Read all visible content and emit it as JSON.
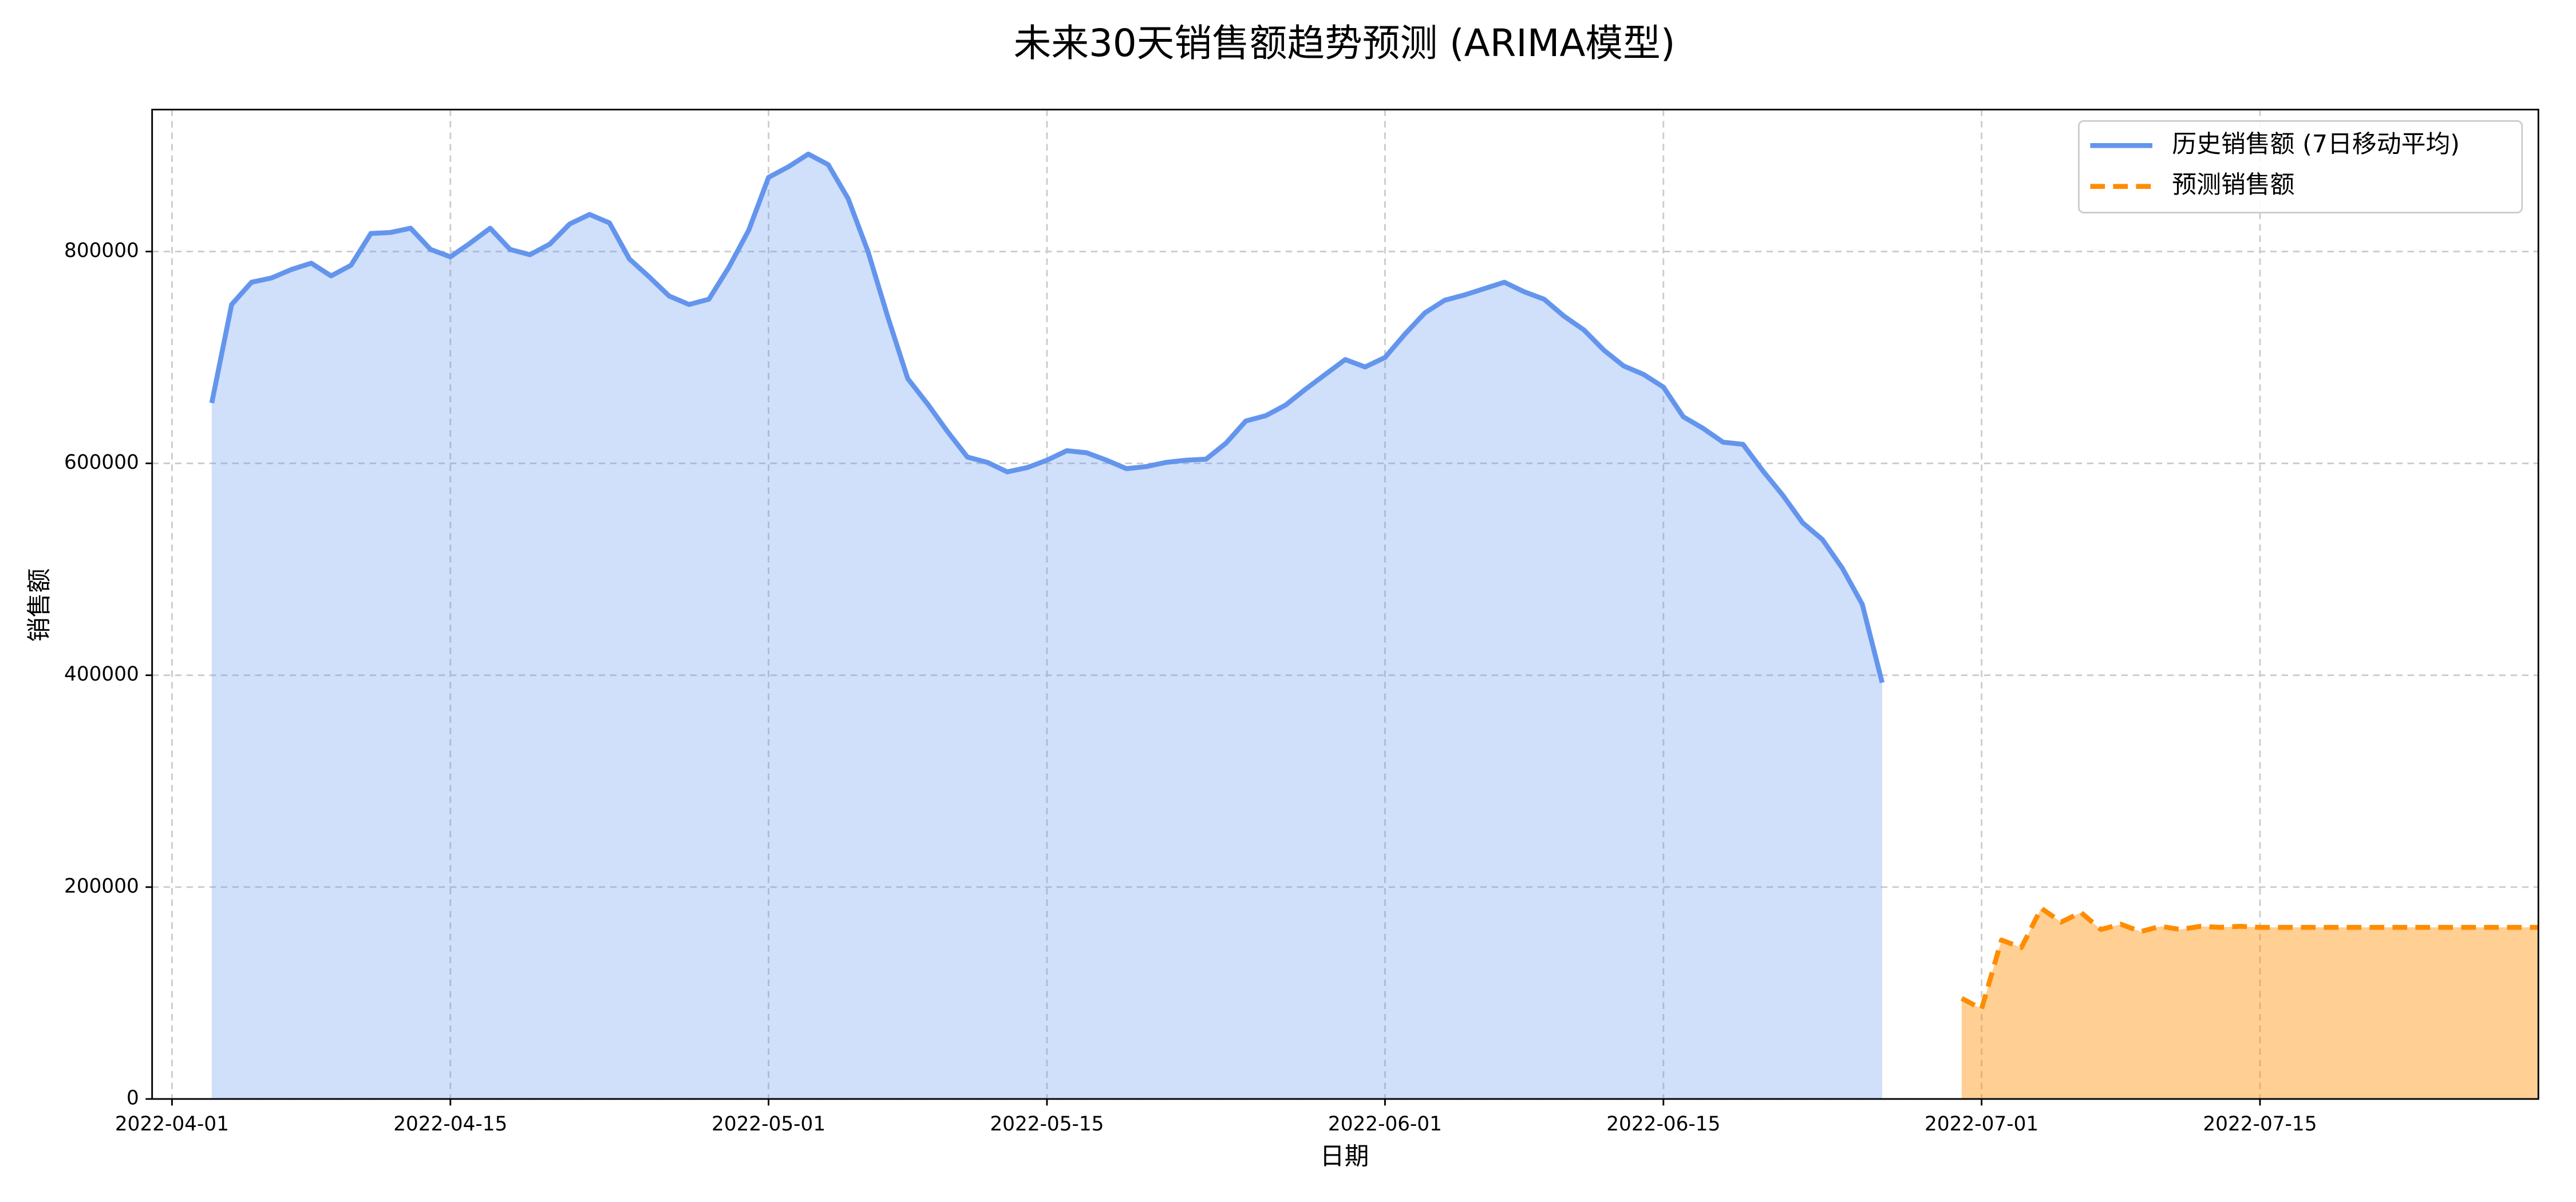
{
  "chart_data": {
    "type": "line",
    "title": "未来30天销售额趋势预测 (ARIMA模型)",
    "x_label": "日期",
    "y_label": "销售额",
    "xlim": [
      "2022-03-31",
      "2022-07-29"
    ],
    "xticks": [
      "2022-04-01",
      "2022-04-15",
      "2022-05-01",
      "2022-05-15",
      "2022-06-01",
      "2022-06-15",
      "2022-07-01",
      "2022-07-15"
    ],
    "ylim": [
      0,
      934000
    ],
    "yticks": [
      0,
      200000,
      400000,
      600000,
      800000
    ],
    "grid": true,
    "legend": "upper right",
    "fill": true,
    "series": [
      {
        "name": "历史销售额 (7日移动平均)",
        "color": "#6495ED",
        "linestyle": "solid",
        "x": [
          "2022-04-03",
          "2022-04-04",
          "2022-04-05",
          "2022-04-06",
          "2022-04-07",
          "2022-04-08",
          "2022-04-09",
          "2022-04-10",
          "2022-04-11",
          "2022-04-12",
          "2022-04-13",
          "2022-04-14",
          "2022-04-15",
          "2022-04-16",
          "2022-04-17",
          "2022-04-18",
          "2022-04-19",
          "2022-04-20",
          "2022-04-21",
          "2022-04-22",
          "2022-04-23",
          "2022-04-24",
          "2022-04-25",
          "2022-04-26",
          "2022-04-27",
          "2022-04-28",
          "2022-04-29",
          "2022-04-30",
          "2022-05-01",
          "2022-05-02",
          "2022-05-03",
          "2022-05-04",
          "2022-05-05",
          "2022-05-06",
          "2022-05-07",
          "2022-05-08",
          "2022-05-09",
          "2022-05-10",
          "2022-05-11",
          "2022-05-12",
          "2022-05-13",
          "2022-05-14",
          "2022-05-15",
          "2022-05-16",
          "2022-05-17",
          "2022-05-18",
          "2022-05-19",
          "2022-05-20",
          "2022-05-21",
          "2022-05-22",
          "2022-05-23",
          "2022-05-24",
          "2022-05-25",
          "2022-05-26",
          "2022-05-27",
          "2022-05-28",
          "2022-05-29",
          "2022-05-30",
          "2022-05-31",
          "2022-06-01",
          "2022-06-02",
          "2022-06-03",
          "2022-06-04",
          "2022-06-05",
          "2022-06-06",
          "2022-06-07",
          "2022-06-08",
          "2022-06-09",
          "2022-06-10",
          "2022-06-11",
          "2022-06-12",
          "2022-06-13",
          "2022-06-14",
          "2022-06-15",
          "2022-06-16",
          "2022-06-17",
          "2022-06-18",
          "2022-06-19",
          "2022-06-20",
          "2022-06-21",
          "2022-06-22",
          "2022-06-23",
          "2022-06-24",
          "2022-06-25",
          "2022-06-26"
        ],
        "values": [
          657000,
          750000,
          771000,
          775000,
          783000,
          789000,
          777000,
          787000,
          817000,
          818000,
          822000,
          802000,
          795000,
          808000,
          822000,
          802000,
          797000,
          807000,
          826000,
          835000,
          827000,
          793000,
          776000,
          758000,
          750000,
          755000,
          785000,
          820000,
          870000,
          880000,
          892000,
          882000,
          850000,
          800000,
          738000,
          680000,
          656000,
          630000,
          606000,
          601000,
          592000,
          596000,
          603000,
          612000,
          610000,
          603000,
          595000,
          597000,
          601000,
          603000,
          604000,
          619000,
          640000,
          645000,
          655000,
          670000,
          684000,
          698000,
          691000,
          700000,
          722000,
          742000,
          754000,
          759000,
          765000,
          771000,
          762000,
          755000,
          739000,
          726000,
          707000,
          692000,
          684000,
          672000,
          644000,
          633000,
          620000,
          618000,
          593000,
          570000,
          544000,
          528000,
          501000,
          467000,
          393000
        ]
      },
      {
        "name": "预测销售额",
        "color": "#FF8C00",
        "linestyle": "dashed",
        "x": [
          "2022-06-30",
          "2022-07-01",
          "2022-07-02",
          "2022-07-03",
          "2022-07-04",
          "2022-07-05",
          "2022-07-06",
          "2022-07-07",
          "2022-07-08",
          "2022-07-09",
          "2022-07-10",
          "2022-07-11",
          "2022-07-12",
          "2022-07-13",
          "2022-07-14",
          "2022-07-15",
          "2022-07-16",
          "2022-07-17",
          "2022-07-18",
          "2022-07-19",
          "2022-07-20",
          "2022-07-21",
          "2022-07-22",
          "2022-07-23",
          "2022-07-24",
          "2022-07-25",
          "2022-07-26",
          "2022-07-27",
          "2022-07-28",
          "2022-07-29"
        ],
        "values": [
          95000,
          85000,
          150000,
          143000,
          180000,
          167000,
          176000,
          160000,
          165000,
          158000,
          163000,
          160000,
          163000,
          162000,
          163000,
          162000,
          162000,
          162000,
          162000,
          162000,
          162000,
          162000,
          162000,
          162000,
          162000,
          162000,
          162000,
          162000,
          162000,
          162000
        ]
      }
    ]
  }
}
